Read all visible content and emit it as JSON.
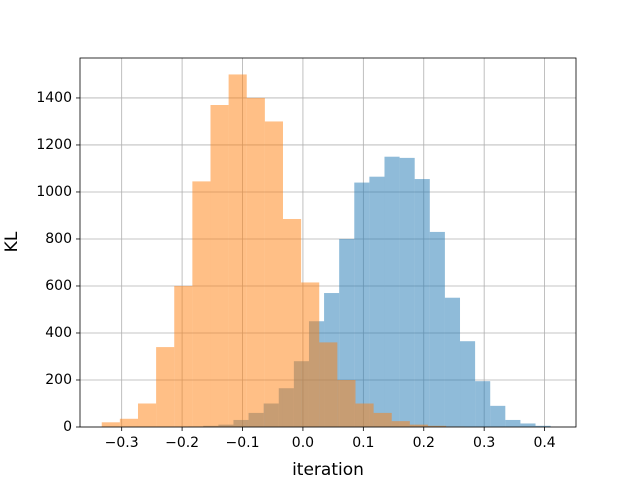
{
  "chart_data": {
    "type": "histogram",
    "xlabel": "iteration",
    "ylabel": "KL",
    "xlim": [
      -0.369,
      0.452
    ],
    "ylim": [
      0,
      1570
    ],
    "xticks": [
      {
        "value": -0.3,
        "label": "−0.3"
      },
      {
        "value": -0.2,
        "label": "−0.2"
      },
      {
        "value": -0.1,
        "label": "−0.1"
      },
      {
        "value": 0,
        "label": "0.0"
      },
      0.1,
      0.2,
      0.3,
      0.4
    ],
    "yticks": [
      0,
      200,
      400,
      600,
      800,
      1000,
      1200,
      1400
    ],
    "grid": true,
    "alpha": 0.5,
    "series": [
      {
        "color": "#1f77b4",
        "bins": [
          -0.19,
          -0.165,
          -0.14,
          -0.115,
          -0.09,
          -0.065,
          -0.04,
          -0.015,
          0.01,
          0.035,
          0.06,
          0.085,
          0.11,
          0.135,
          0.16,
          0.185,
          0.21,
          0.235,
          0.26,
          0.285,
          0.31,
          0.335,
          0.36,
          0.385,
          0.41
        ],
        "values": [
          2,
          5,
          10,
          30,
          60,
          100,
          165,
          280,
          450,
          570,
          800,
          1040,
          1065,
          1150,
          1145,
          1055,
          830,
          550,
          365,
          195,
          90,
          30,
          15,
          5
        ]
      },
      {
        "color": "#ff7f0e",
        "bins": [
          -0.333,
          -0.303,
          -0.273,
          -0.243,
          -0.213,
          -0.183,
          -0.153,
          -0.123,
          -0.093,
          -0.063,
          -0.033,
          -0.003,
          0.027,
          0.057,
          0.087,
          0.117,
          0.147,
          0.177,
          0.207,
          0.237,
          0.267
        ],
        "values": [
          20,
          35,
          100,
          340,
          600,
          1045,
          1370,
          1500,
          1400,
          1300,
          885,
          615,
          360,
          200,
          100,
          60,
          25,
          10,
          5,
          2
        ]
      }
    ]
  }
}
